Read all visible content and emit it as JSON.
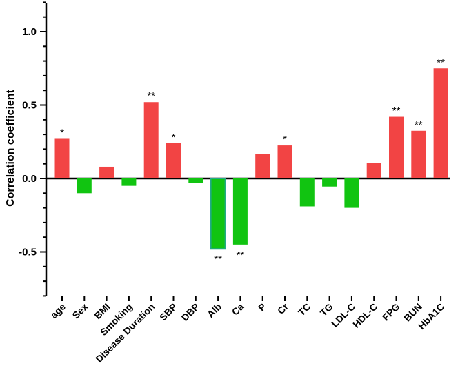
{
  "chart_data": {
    "type": "bar",
    "ylabel": "Correlation coefficient",
    "xlabel": "",
    "ylim": [
      -0.8,
      1.2
    ],
    "yticks": [
      -0.5,
      0.0,
      0.5,
      1.0
    ],
    "ytick_labels": [
      "-0.5",
      "0.0",
      "0.5",
      "1.0"
    ],
    "grid": false,
    "legend": "none",
    "colors": {
      "positive": "#f24444",
      "negative": "#11c411",
      "negative_edge": "#22aa88"
    },
    "categories": [
      "age",
      "Sex",
      "BMI",
      "Smoking",
      "Disease Duration",
      "SBP",
      "DBP",
      "Alb",
      "Ca",
      "P",
      "Cr",
      "TC",
      "TG",
      "LDL-C",
      "HDL-C",
      "FPG",
      "BUN",
      "HbA1C"
    ],
    "values": [
      0.27,
      -0.1,
      0.08,
      -0.05,
      0.52,
      0.24,
      -0.03,
      -0.48,
      -0.45,
      0.165,
      0.225,
      -0.19,
      -0.055,
      -0.2,
      0.105,
      0.42,
      0.325,
      0.75
    ],
    "significance": [
      "*",
      "",
      "",
      "",
      "**",
      "*",
      "",
      "**",
      "**",
      "",
      "*",
      "",
      "",
      "",
      "",
      "**",
      "**",
      "**"
    ]
  }
}
